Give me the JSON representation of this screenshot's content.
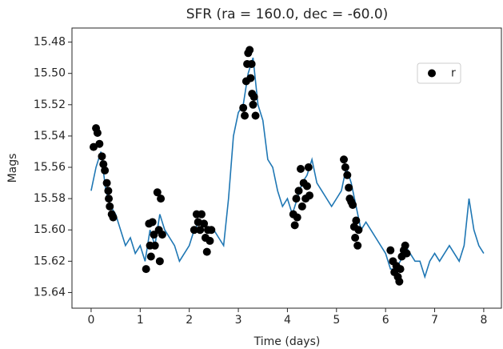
{
  "chart_data": {
    "type": "line",
    "title": "SFR (ra = 160.0, dec = -60.0)",
    "xlabel": "Time (days)",
    "ylabel": "Mags",
    "xlim": [
      -0.39,
      8.36
    ],
    "ylim": [
      15.471,
      15.65
    ],
    "y_inverted": true,
    "xticks": [
      0,
      1,
      2,
      3,
      4,
      5,
      6,
      7,
      8
    ],
    "yticks": [
      15.48,
      {
        "value": 15.5,
        "label": "15.50"
      },
      15.52,
      15.54,
      15.56,
      15.58,
      {
        "value": 15.6,
        "label": "15.60"
      },
      15.62,
      15.64
    ],
    "legend_location": "upper right",
    "series": [
      {
        "type": "line",
        "color": "#1f77b4",
        "x": [
          0,
          0.1,
          0.2,
          0.3,
          0.4,
          0.5,
          0.6,
          0.7,
          0.8,
          0.9,
          1,
          1.1,
          1.2,
          1.3,
          1.4,
          1.5,
          1.6,
          1.7,
          1.8,
          1.9,
          2,
          2.1,
          2.2,
          2.3,
          2.4,
          2.5,
          2.6,
          2.7,
          2.8,
          2.9,
          3,
          3.1,
          3.2,
          3.3,
          3.4,
          3.5,
          3.6,
          3.7,
          3.8,
          3.9,
          4,
          4.1,
          4.2,
          4.3,
          4.4,
          4.5,
          4.6,
          4.7,
          4.8,
          4.9,
          5,
          5.1,
          5.2,
          5.3,
          5.4,
          5.5,
          5.6,
          5.7,
          5.8,
          5.9,
          6,
          6.1,
          6.2,
          6.3,
          6.4,
          6.5,
          6.6,
          6.7,
          6.8,
          6.9,
          7,
          7.1,
          7.2,
          7.3,
          7.4,
          7.5,
          7.6,
          7.7,
          7.8,
          7.9,
          8
        ],
        "values": [
          15.575,
          15.56,
          15.55,
          15.575,
          15.585,
          15.59,
          15.6,
          15.61,
          15.605,
          15.615,
          15.61,
          15.62,
          15.6,
          15.61,
          15.59,
          15.6,
          15.605,
          15.61,
          15.62,
          15.615,
          15.61,
          15.6,
          15.595,
          15.595,
          15.6,
          15.6,
          15.605,
          15.61,
          15.58,
          15.54,
          15.525,
          15.52,
          15.5,
          15.49,
          15.52,
          15.53,
          15.555,
          15.56,
          15.575,
          15.585,
          15.58,
          15.59,
          15.58,
          15.57,
          15.565,
          15.555,
          15.57,
          15.575,
          15.58,
          15.585,
          15.58,
          15.575,
          15.56,
          15.57,
          15.585,
          15.6,
          15.595,
          15.6,
          15.605,
          15.61,
          15.615,
          15.625,
          15.625,
          15.62,
          15.61,
          15.615,
          15.62,
          15.62,
          15.63,
          15.62,
          15.615,
          15.62,
          15.615,
          15.61,
          15.615,
          15.62,
          15.61,
          15.58,
          15.6,
          15.61,
          15.615
        ]
      },
      {
        "type": "scatter",
        "name": "r",
        "color": "#000000",
        "x": [
          0.05,
          0.1,
          0.13,
          0.17,
          0.22,
          0.25,
          0.28,
          0.32,
          0.35,
          0.36,
          0.38,
          0.42,
          0.45,
          1.12,
          1.18,
          1.2,
          1.22,
          1.25,
          1.28,
          1.3,
          1.35,
          1.38,
          1.4,
          1.42,
          1.45,
          2.1,
          2.15,
          2.18,
          2.22,
          2.25,
          2.3,
          2.33,
          2.36,
          2.38,
          2.42,
          2.45,
          3.1,
          3.13,
          3.16,
          3.18,
          3.2,
          3.23,
          3.25,
          3.27,
          3.28,
          3.3,
          3.32,
          3.35,
          4.12,
          4.15,
          4.18,
          4.2,
          4.23,
          4.27,
          4.3,
          4.33,
          4.37,
          4.4,
          4.43,
          4.45,
          5.15,
          5.18,
          5.22,
          5.25,
          5.27,
          5.3,
          5.33,
          5.36,
          5.38,
          5.4,
          5.43,
          5.45,
          6.1,
          6.15,
          6.18,
          6.22,
          6.25,
          6.28,
          6.3,
          6.33,
          6.37,
          6.4,
          6.43
        ],
        "values": [
          15.547,
          15.535,
          15.538,
          15.545,
          15.553,
          15.558,
          15.562,
          15.57,
          15.575,
          15.58,
          15.585,
          15.59,
          15.592,
          15.625,
          15.596,
          15.61,
          15.617,
          15.595,
          15.603,
          15.61,
          15.576,
          15.6,
          15.62,
          15.58,
          15.603,
          15.6,
          15.59,
          15.595,
          15.6,
          15.59,
          15.596,
          15.605,
          15.614,
          15.6,
          15.607,
          15.6,
          15.522,
          15.527,
          15.505,
          15.494,
          15.487,
          15.485,
          15.503,
          15.494,
          15.513,
          15.52,
          15.515,
          15.527,
          15.59,
          15.597,
          15.58,
          15.592,
          15.575,
          15.561,
          15.585,
          15.57,
          15.58,
          15.572,
          15.56,
          15.578,
          15.555,
          15.56,
          15.565,
          15.573,
          15.58,
          15.582,
          15.584,
          15.598,
          15.605,
          15.594,
          15.61,
          15.6,
          15.613,
          15.62,
          15.627,
          15.623,
          15.63,
          15.633,
          15.625,
          15.617,
          15.613,
          15.61,
          15.615
        ]
      }
    ]
  }
}
